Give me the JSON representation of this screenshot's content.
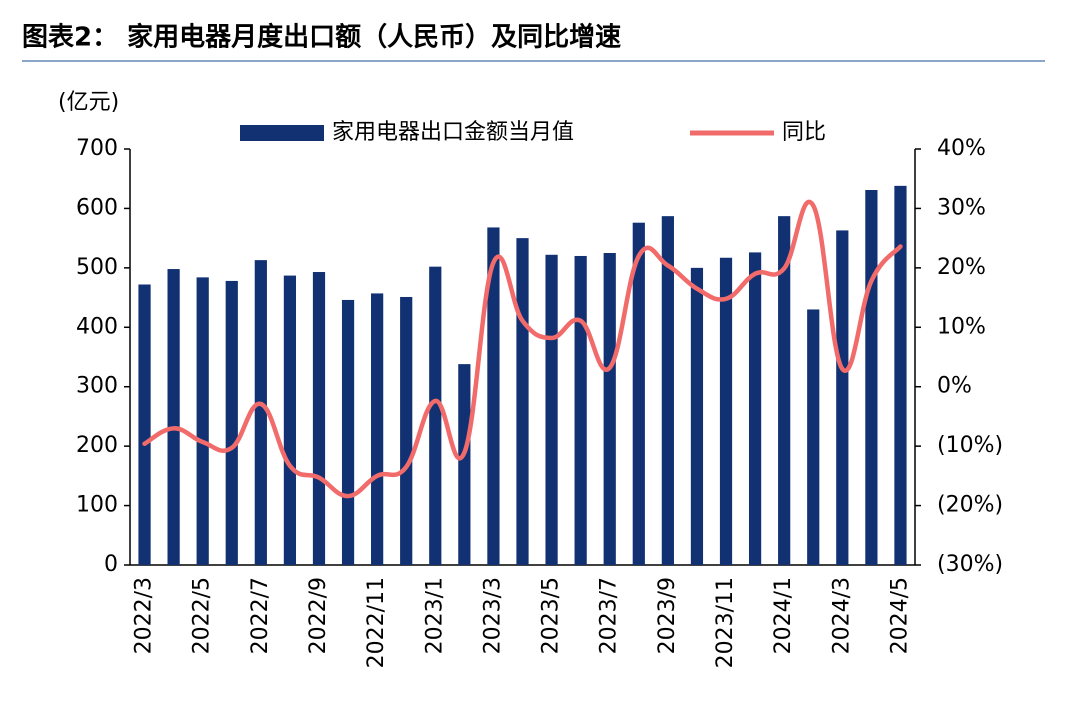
{
  "chart_data": {
    "type": "bar_line",
    "title": "图表2：  家用电器月度出口额（人民币）及同比增速",
    "y_axis_label": "(亿元)",
    "categories": [
      "2022/3",
      null,
      "2022/5",
      null,
      "2022/7",
      null,
      "2022/9",
      null,
      "2022/11",
      null,
      "2023/1",
      null,
      "2023/3",
      null,
      "2023/5",
      null,
      "2023/7",
      null,
      "2023/9",
      null,
      "2023/11",
      null,
      "2024/1",
      null,
      "2024/3",
      null,
      "2024/5"
    ],
    "series": [
      {
        "name": "家用电器出口金额当月值",
        "type": "bar",
        "color": "#123172",
        "values": [
          472,
          498,
          484,
          478,
          513,
          487,
          493,
          446,
          457,
          451,
          502,
          338,
          568,
          550,
          522,
          520,
          525,
          576,
          587,
          500,
          517,
          526,
          587,
          430,
          563,
          631,
          638
        ]
      },
      {
        "name": "同比",
        "type": "line",
        "axis": "y2",
        "color": "#f26b6b",
        "values": [
          -9.6,
          -7,
          -9.3,
          -10.3,
          -2.9,
          -13.3,
          -15.3,
          -18.4,
          -15,
          -13.5,
          -2.4,
          -11.1,
          20.9,
          11.1,
          8.2,
          11.1,
          3.2,
          22,
          20.4,
          16.5,
          14.8,
          19,
          19.9,
          30.5,
          3,
          17.8,
          23.6
        ]
      }
    ],
    "ylim": [
      0,
      700
    ],
    "yticks": [
      0,
      100,
      200,
      300,
      400,
      500,
      600,
      700
    ],
    "y2lim": [
      -30,
      40
    ],
    "y2ticks": [
      {
        "value": -30,
        "label": "(30%)"
      },
      {
        "value": -20,
        "label": "(20%)"
      },
      {
        "value": -10,
        "label": "(10%)"
      },
      {
        "value": 0,
        "label": "0%"
      },
      {
        "value": 10,
        "label": "10%"
      },
      {
        "value": 20,
        "label": "20%"
      },
      {
        "value": 30,
        "label": "30%"
      },
      {
        "value": 40,
        "label": "40%"
      }
    ],
    "grid": false,
    "legend": "top"
  }
}
